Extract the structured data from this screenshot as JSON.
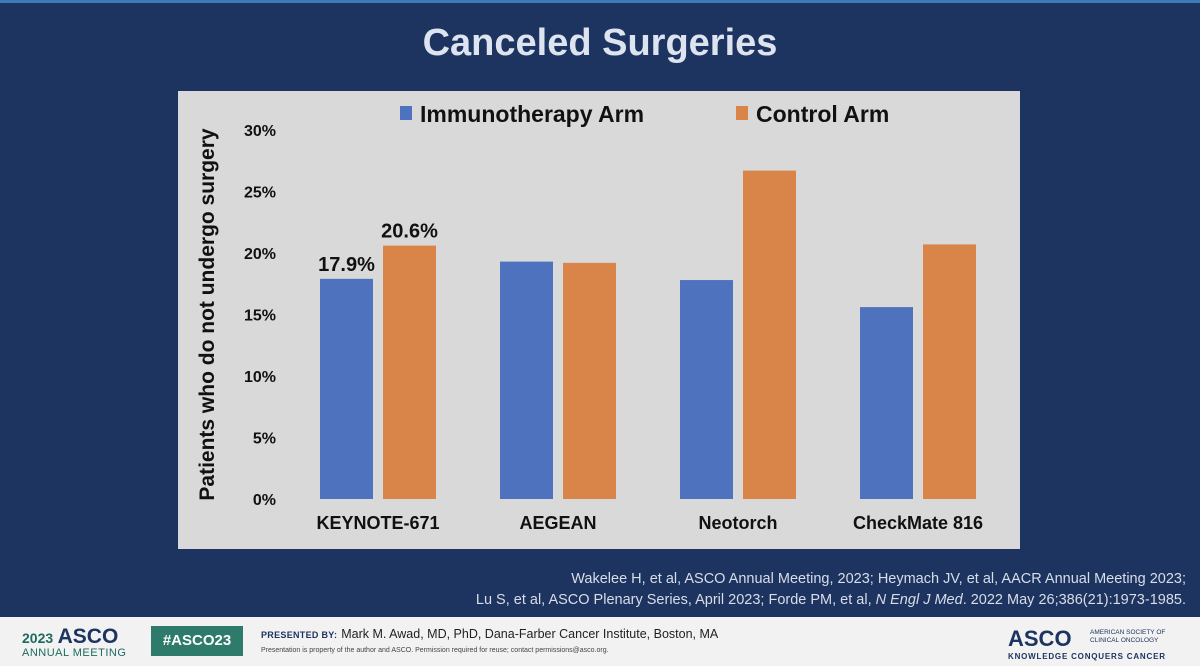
{
  "slide": {
    "title": "Canceled Surgeries",
    "references": {
      "line1": "Wakelee H, et al, ASCO Annual Meeting, 2023; Heymach JV, et al, AACR Annual Meeting 2023;",
      "line2_prefix": "Lu S, et al, ASCO Plenary Series, April 2023; Forde PM, et al, ",
      "line2_journal": "N Engl J Med",
      "line2_suffix": ". 2022 May 26;386(21):1973-1985."
    }
  },
  "footer": {
    "year": "2023",
    "asco": "ASCO",
    "annual_meeting": "ANNUAL MEETING",
    "hashtag": "#ASCO23",
    "presented_by_label": "PRESENTED BY:",
    "presenter": "Mark M. Awad, MD, PhD, Dana-Farber Cancer Institute, Boston, MA",
    "note": "Presentation is property of the author and ASCO. Permission required for reuse; contact permissions@asco.org.",
    "org_logo": "ASCO",
    "org_name_line1": "AMERICAN SOCIETY OF",
    "org_name_line2": "CLINICAL ONCOLOGY",
    "org_tagline": "KNOWLEDGE CONQUERS CANCER"
  },
  "colors": {
    "immunotherapy": "#4f72bf",
    "control": "#d9854a",
    "background": "#1d3461",
    "plot_bg": "#d9d9d9"
  },
  "chart_data": {
    "type": "bar",
    "title": "",
    "ylabel": "Patients who do not undergo surgery",
    "xlabel": "",
    "ylim": [
      0,
      30
    ],
    "yticks": [
      0,
      5,
      10,
      15,
      20,
      25,
      30
    ],
    "ytick_labels": [
      "0%",
      "5%",
      "10%",
      "15%",
      "20%",
      "25%",
      "30%"
    ],
    "categories": [
      "KEYNOTE-671",
      "AEGEAN",
      "Neotorch",
      "CheckMate 816"
    ],
    "series": [
      {
        "name": "Immunotherapy Arm",
        "values": [
          17.9,
          19.3,
          17.8,
          15.6
        ],
        "labels": [
          "17.9%",
          null,
          null,
          null
        ]
      },
      {
        "name": "Control Arm",
        "values": [
          20.6,
          19.2,
          26.7,
          20.7
        ],
        "labels": [
          "20.6%",
          null,
          null,
          null
        ]
      }
    ],
    "legend": "top-center",
    "grid": false
  }
}
